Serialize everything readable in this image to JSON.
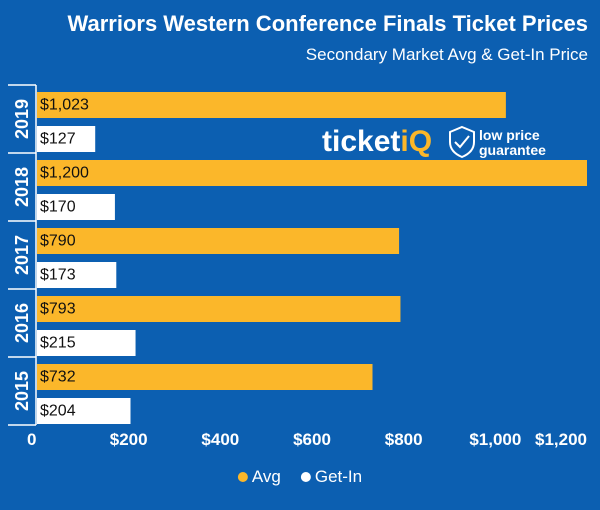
{
  "chart_data": {
    "type": "bar",
    "orientation": "horizontal",
    "title": "Warriors Western Conference Finals Ticket Prices",
    "subtitle": "Secondary Market Avg & Get-In Price",
    "categories": [
      "2019",
      "2018",
      "2017",
      "2016",
      "2015"
    ],
    "series": [
      {
        "name": "Avg",
        "color": "#fbb72a",
        "values": [
          1023,
          1200,
          790,
          793,
          732
        ],
        "labels": [
          "$1,023",
          "$1,200",
          "$790",
          "$793",
          "$732"
        ]
      },
      {
        "name": "Get-In",
        "color": "#ffffff",
        "values": [
          127,
          170,
          173,
          215,
          204
        ],
        "labels": [
          "$127",
          "$170",
          "$173",
          "$215",
          "$204"
        ]
      }
    ],
    "xlim": [
      0,
      1200
    ],
    "xticks": [
      0,
      200,
      400,
      600,
      800,
      1000,
      1200
    ],
    "xtick_labels": [
      "0",
      "$200",
      "$400",
      "$600",
      "$800",
      "$1,000",
      "$1,200"
    ],
    "grid": false,
    "legend": {
      "position": "bottom",
      "entries": [
        "Avg",
        "Get-In"
      ]
    },
    "background": "#0c5fb1"
  },
  "watermark": {
    "brand_main": "ticket",
    "brand_accent": "iQ",
    "accent_color": "#fbb72a",
    "tagline_line1": "low price",
    "tagline_line2": "guarantee",
    "icon": "shield-icon"
  }
}
